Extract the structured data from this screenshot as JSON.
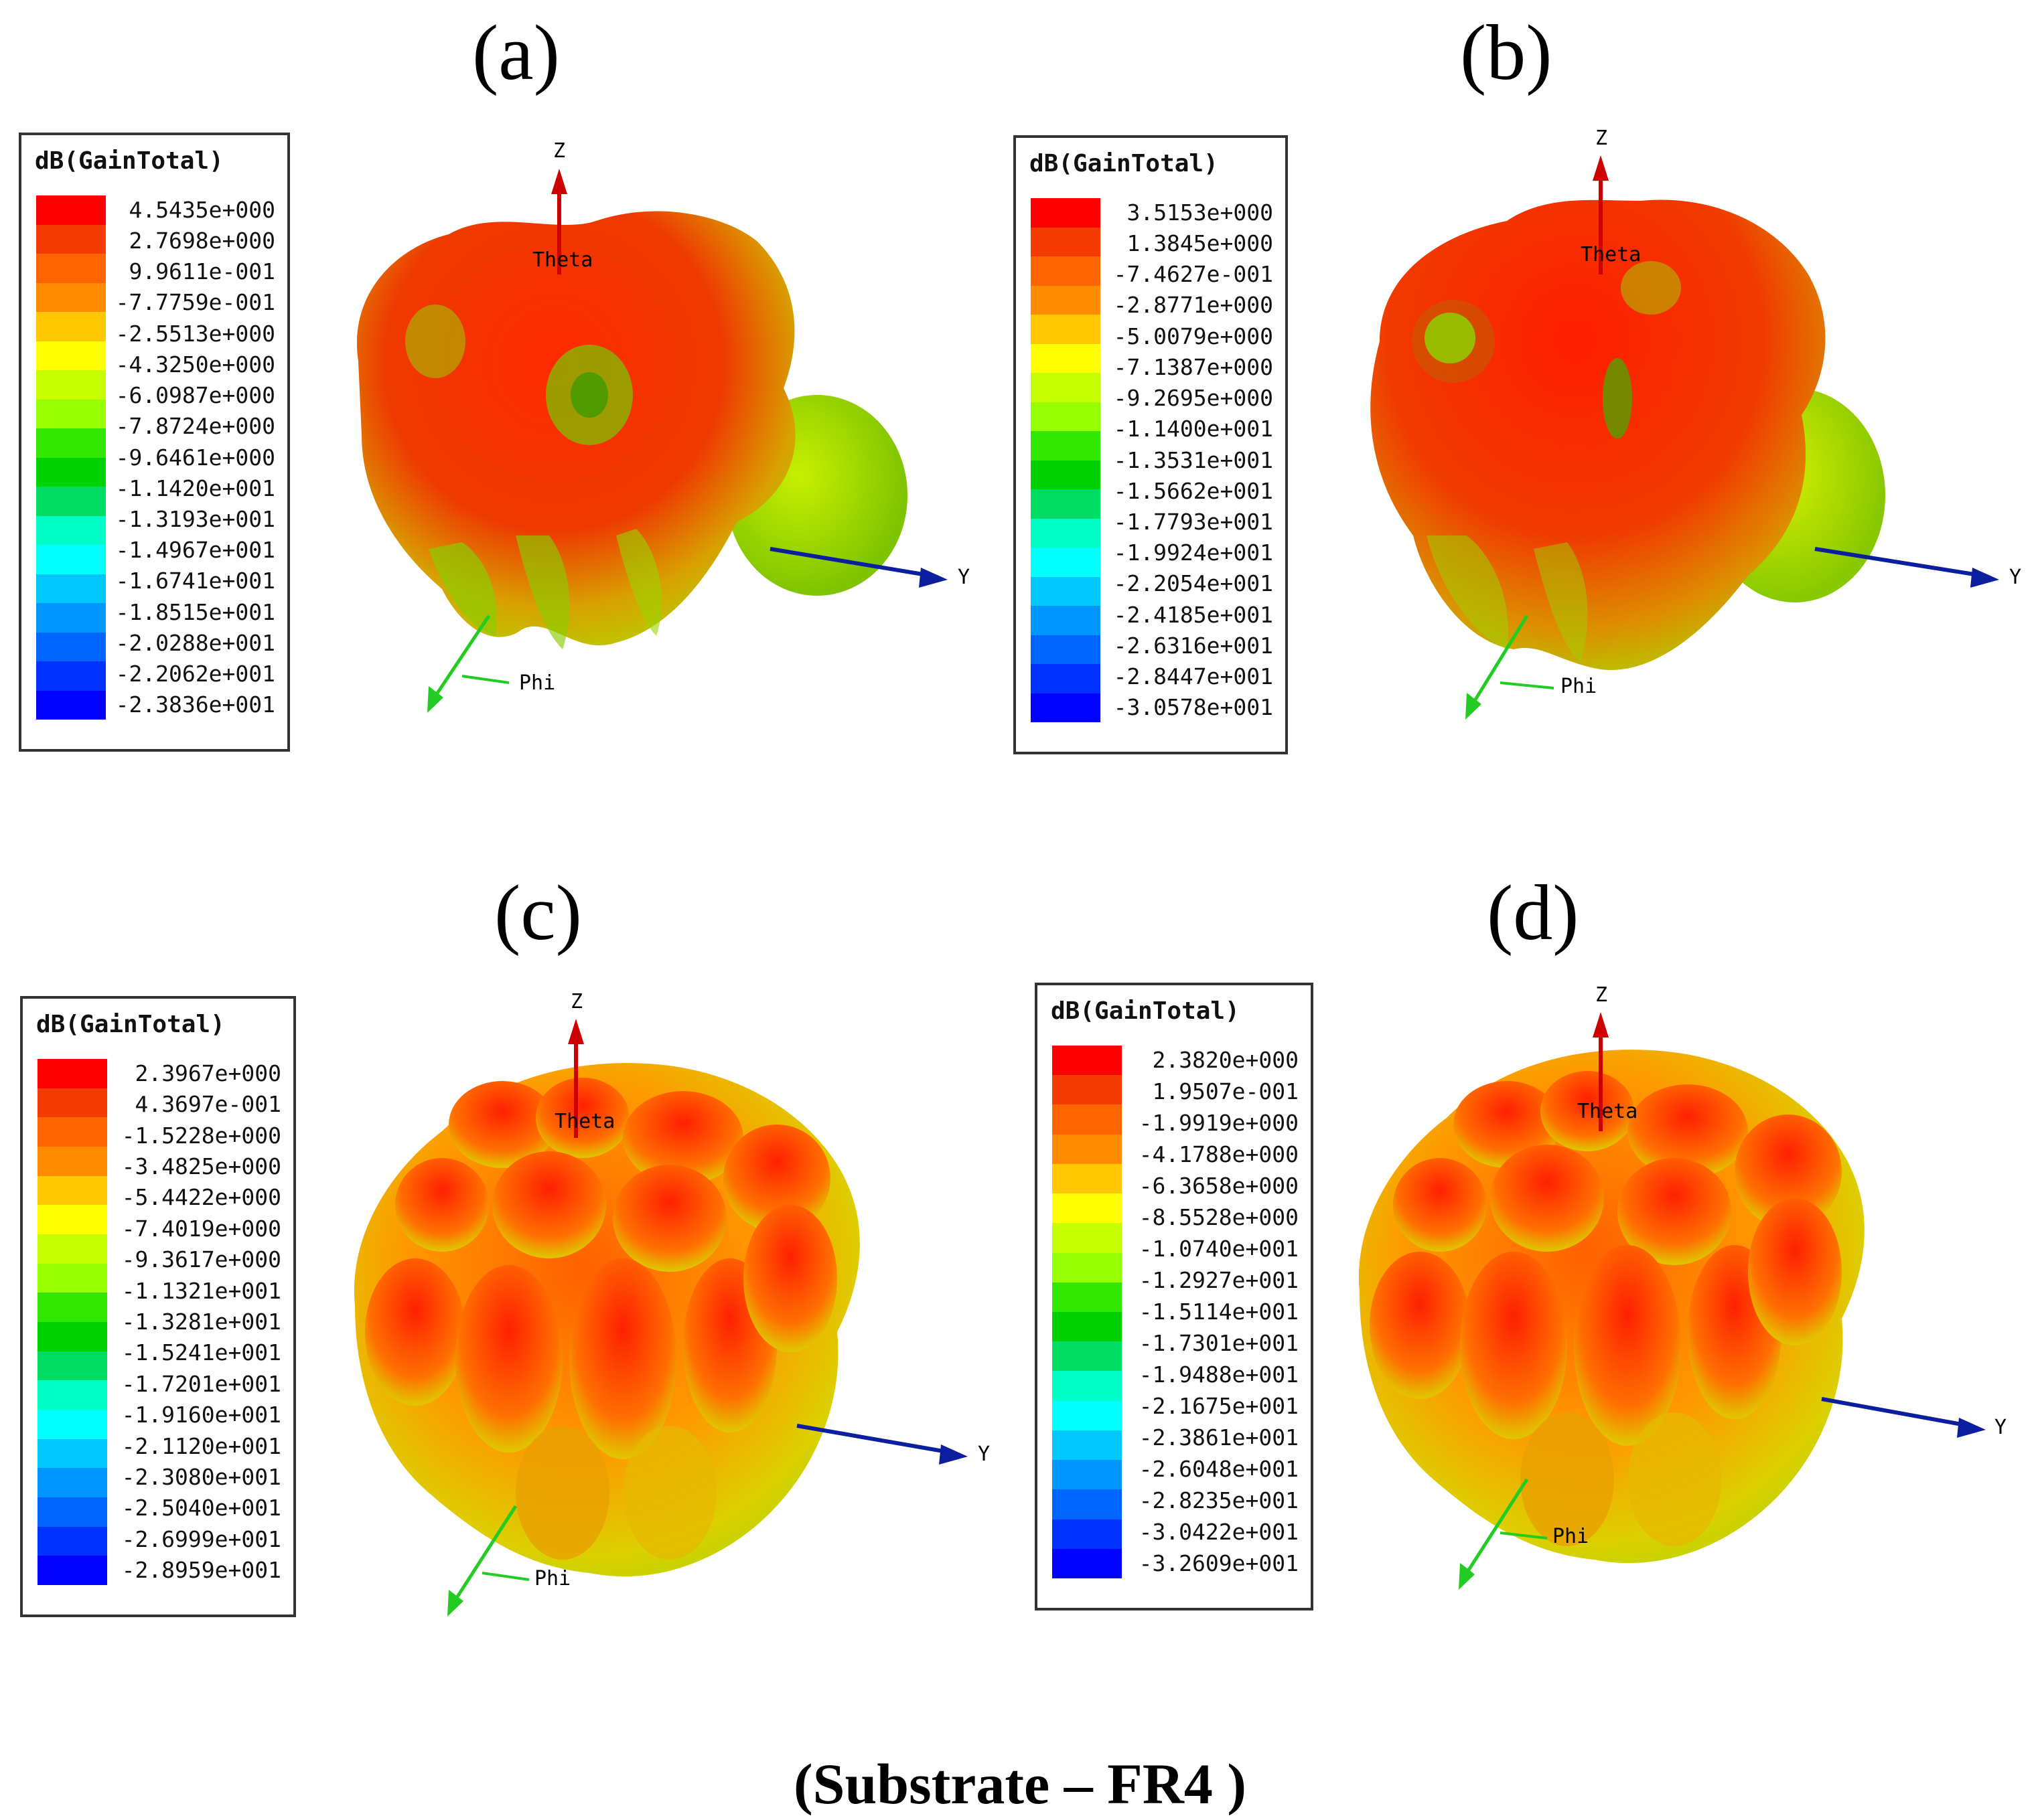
{
  "caption": "(Substrate – FR4 )",
  "legend_title": "dB(GainTotal)",
  "colorscale": [
    "#ff0000",
    "#f53c00",
    "#ff6400",
    "#ff8c00",
    "#ffc800",
    "#ffff00",
    "#c8ff00",
    "#96ff00",
    "#32e600",
    "#00d200",
    "#00dc64",
    "#00ffc8",
    "#00ffff",
    "#00c8ff",
    "#0096ff",
    "#0064ff",
    "#0032ff",
    "#0000ff"
  ],
  "panels": [
    {
      "label": "(a)",
      "legend_values": [
        "4.5435e+000",
        "2.7698e+000",
        "9.9611e-001",
        "-7.7759e-001",
        "-2.5513e+000",
        "-4.3250e+000",
        "-6.0987e+000",
        "-7.8724e+000",
        "-9.6461e+000",
        "-1.1420e+001",
        "-1.3193e+001",
        "-1.4967e+001",
        "-1.6741e+001",
        "-1.8515e+001",
        "-2.0288e+001",
        "-2.2062e+001",
        "-2.3836e+001"
      ],
      "axes": {
        "z": "Z",
        "y": "Y",
        "theta": "Theta",
        "phi": "Phi"
      }
    },
    {
      "label": "(b)",
      "legend_values": [
        "3.5153e+000",
        "1.3845e+000",
        "-7.4627e-001",
        "-2.8771e+000",
        "-5.0079e+000",
        "-7.1387e+000",
        "-9.2695e+000",
        "-1.1400e+001",
        "-1.3531e+001",
        "-1.5662e+001",
        "-1.7793e+001",
        "-1.9924e+001",
        "-2.2054e+001",
        "-2.4185e+001",
        "-2.6316e+001",
        "-2.8447e+001",
        "-3.0578e+001"
      ],
      "axes": {
        "z": "Z",
        "y": "Y",
        "theta": "Theta",
        "phi": "Phi"
      }
    },
    {
      "label": "(c)",
      "legend_values": [
        "2.3967e+000",
        "4.3697e-001",
        "-1.5228e+000",
        "-3.4825e+000",
        "-5.4422e+000",
        "-7.4019e+000",
        "-9.3617e+000",
        "-1.1321e+001",
        "-1.3281e+001",
        "-1.5241e+001",
        "-1.7201e+001",
        "-1.9160e+001",
        "-2.1120e+001",
        "-2.3080e+001",
        "-2.5040e+001",
        "-2.6999e+001",
        "-2.8959e+001"
      ],
      "axes": {
        "z": "Z",
        "y": "Y",
        "theta": "Theta",
        "phi": "Phi"
      }
    },
    {
      "label": "(d)",
      "legend_values": [
        "2.3820e+000",
        "1.9507e-001",
        "-1.9919e+000",
        "-4.1788e+000",
        "-6.3658e+000",
        "-8.5528e+000",
        "-1.0740e+001",
        "-1.2927e+001",
        "-1.5114e+001",
        "-1.7301e+001",
        "-1.9488e+001",
        "-2.1675e+001",
        "-2.3861e+001",
        "-2.6048e+001",
        "-2.8235e+001",
        "-3.0422e+001",
        "-3.2609e+001"
      ],
      "axes": {
        "z": "Z",
        "y": "Y",
        "theta": "Theta",
        "phi": "Phi"
      }
    }
  ]
}
